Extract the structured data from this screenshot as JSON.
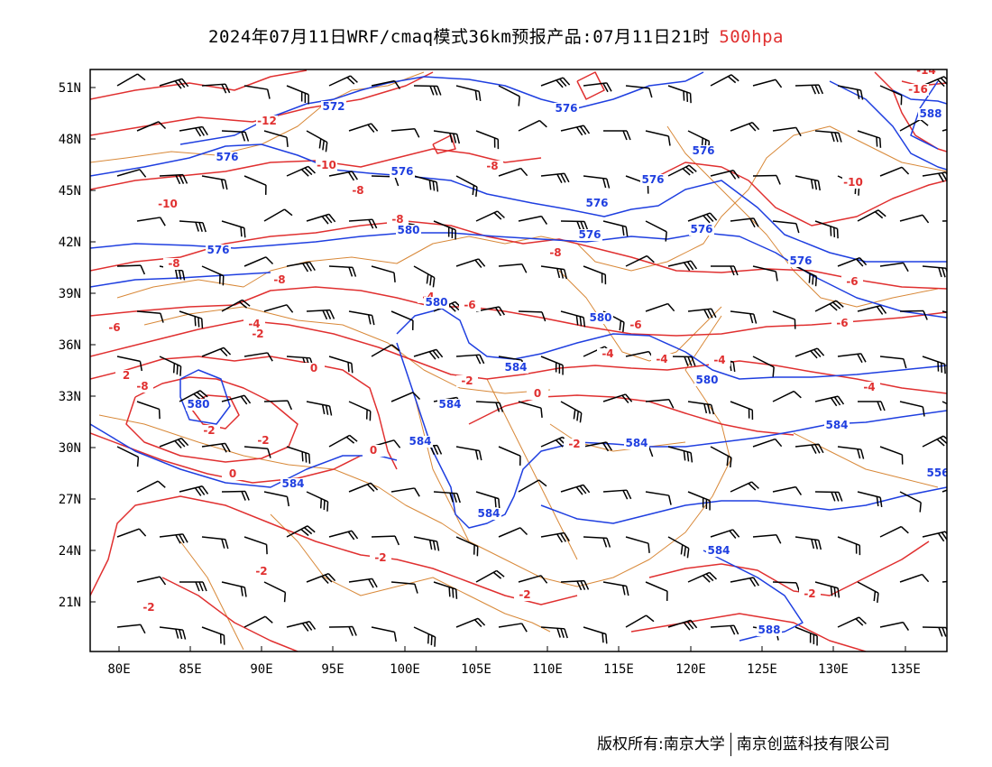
{
  "title": {
    "main": "2024年07月11日WRF/cmaq模式36km预报产品:07月11日21时",
    "level": "500hpa",
    "level_color": "#e03030"
  },
  "footer": {
    "left": "版权所有:南京大学",
    "right": "南京创蓝科技有限公司"
  },
  "map": {
    "lat_labels": [
      "51N",
      "48N",
      "45N",
      "42N",
      "39N",
      "36N",
      "33N",
      "30N",
      "27N",
      "24N",
      "21N"
    ],
    "lon_labels": [
      "80E",
      "85E",
      "90E",
      "95E",
      "100E",
      "105E",
      "110E",
      "115E",
      "120E",
      "125E",
      "130E",
      "135E"
    ],
    "colors": {
      "height_contour": "#1f3fe0",
      "temperature_contour": "#e03030",
      "boundary": "#d88838",
      "wind_barb": "#000000"
    },
    "height_labels": [
      "572",
      "576",
      "576",
      "576",
      "576",
      "576",
      "576",
      "576",
      "576",
      "576",
      "576",
      "580",
      "580",
      "580",
      "580",
      "580",
      "584",
      "584",
      "584",
      "584",
      "584",
      "584",
      "584",
      "584",
      "588",
      "588",
      "556",
      "58"
    ],
    "temperature_labels": [
      "-12",
      "-10",
      "-10",
      "-8",
      "-8",
      "-8",
      "-8",
      "-8",
      "-8",
      "-6",
      "-6",
      "-6",
      "-6",
      "-6",
      "-4",
      "-4",
      "-4",
      "-4",
      "-4",
      "-4",
      "-2",
      "-2",
      "-2",
      "-2",
      "-2",
      "-2",
      "-2",
      "-2",
      "-2",
      "-2",
      "0",
      "0",
      "0",
      "0",
      "2",
      "-14",
      "-16",
      "-10",
      "-8",
      "-8"
    ]
  }
}
